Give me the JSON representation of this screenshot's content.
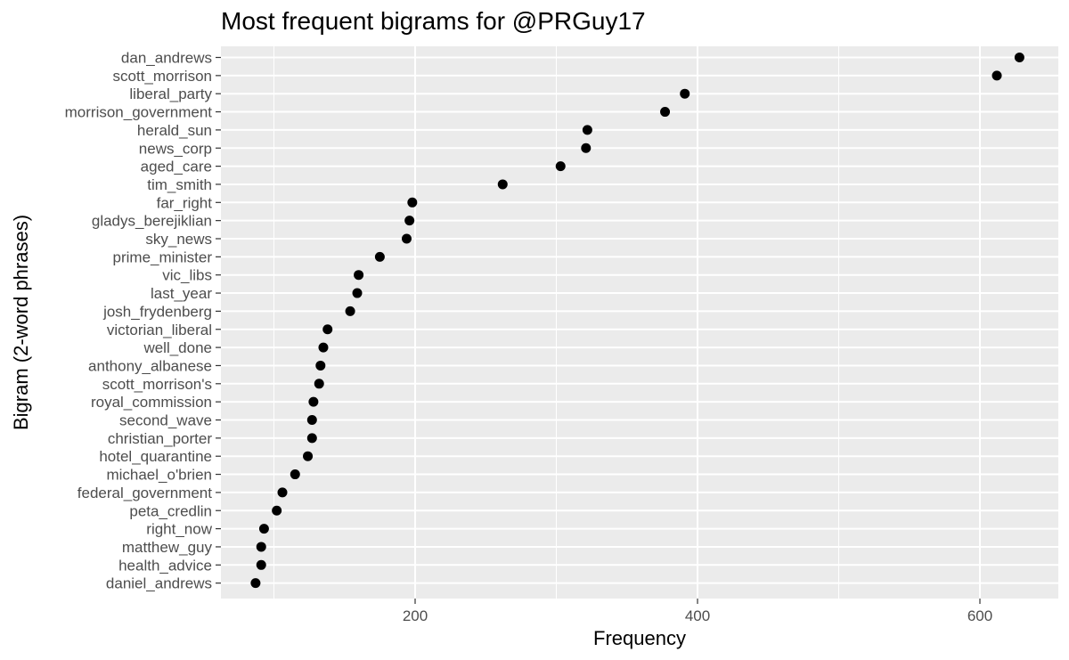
{
  "chart_data": {
    "type": "scatter",
    "title": "Most frequent bigrams for @PRGuy17",
    "xlabel": "Frequency",
    "ylabel": "Bigram (2-word phrases)",
    "xlim": [
      50,
      650
    ],
    "x_ticks": [
      200,
      400,
      600
    ],
    "x_tick_labels": [
      "200",
      "400",
      "600"
    ],
    "grid": true,
    "categories": [
      "dan_andrews",
      "scott_morrison",
      "liberal_party",
      "morrison_government",
      "herald_sun",
      "news_corp",
      "aged_care",
      "tim_smith",
      "far_right",
      "gladys_berejiklian",
      "sky_news",
      "prime_minister",
      "vic_libs",
      "last_year",
      "josh_frydenberg",
      "victorian_liberal",
      "well_done",
      "anthony_albanese",
      "scott_morrison's",
      "royal_commission",
      "second_wave",
      "christian_porter",
      "hotel_quarantine",
      "michael_o'brien",
      "federal_government",
      "peta_credlin",
      "right_now",
      "matthew_guy",
      "health_advice",
      "daniel_andrews"
    ],
    "values": [
      628,
      612,
      391,
      377,
      322,
      321,
      303,
      262,
      198,
      196,
      194,
      175,
      160,
      159,
      154,
      138,
      135,
      133,
      132,
      128,
      127,
      127,
      124,
      115,
      106,
      102,
      93,
      91,
      91,
      87
    ]
  }
}
